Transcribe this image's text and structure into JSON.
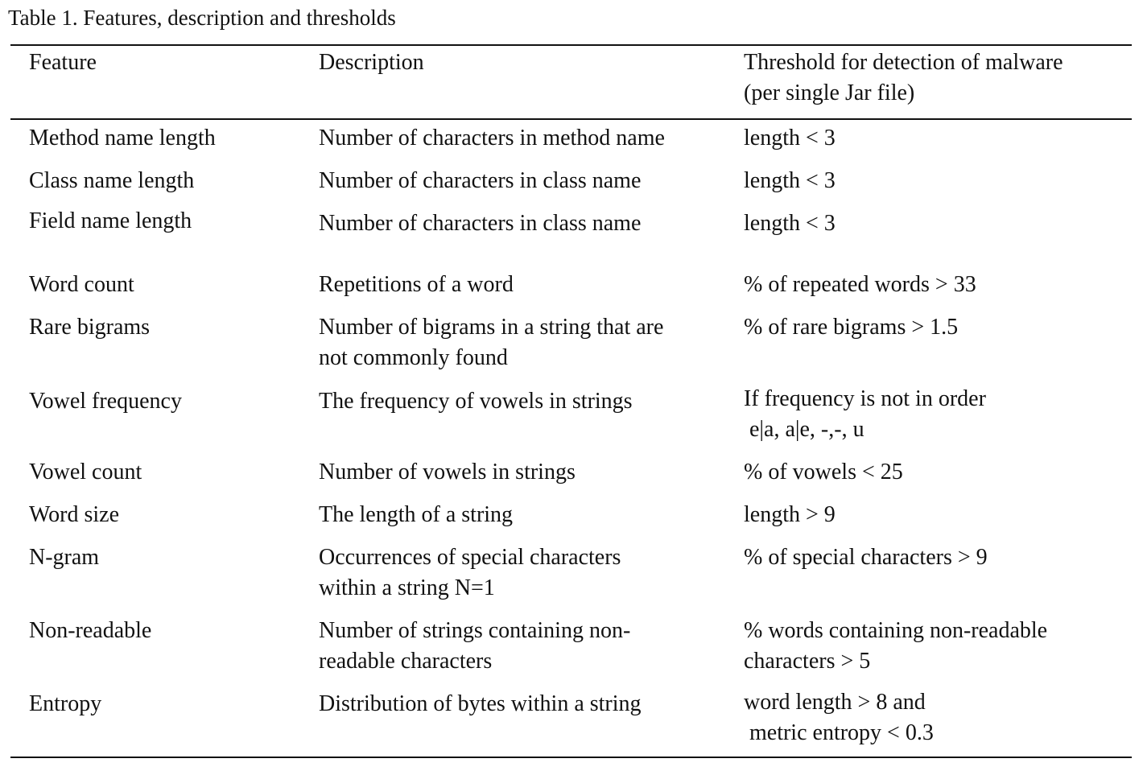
{
  "caption": "Table 1. Features, description and thresholds",
  "header": {
    "feature": "Feature",
    "description": "Description",
    "threshold_line1": "Threshold for detection of malware",
    "threshold_line2": "(per single Jar file)"
  },
  "rows": [
    {
      "feature": "Method name length",
      "description": [
        "Number of characters in method name"
      ],
      "threshold": [
        "length < 3"
      ]
    },
    {
      "feature": "Class name length",
      "description": [
        "Number of characters in class name"
      ],
      "threshold": [
        "length < 3"
      ]
    },
    {
      "feature": "Field name length",
      "description": [
        "Number of characters in class name"
      ],
      "threshold": [
        "length < 3"
      ]
    },
    {
      "feature": "Word count",
      "description": [
        "Repetitions of a word"
      ],
      "threshold": [
        "% of repeated words > 33"
      ]
    },
    {
      "feature": "Rare bigrams",
      "description": [
        "Number of bigrams in a string that are",
        "not commonly found"
      ],
      "threshold": [
        "% of rare bigrams > 1.5"
      ]
    },
    {
      "feature": "Vowel frequency",
      "description": [
        "The frequency of vowels in strings"
      ],
      "threshold": [
        "If frequency is not in order",
        "e|a, a|e, -,-, u"
      ]
    },
    {
      "feature": "Vowel count",
      "description": [
        "Number of vowels in strings"
      ],
      "threshold": [
        "% of vowels < 25"
      ]
    },
    {
      "feature": "Word size",
      "description": [
        "The length of a string"
      ],
      "threshold": [
        "length > 9"
      ]
    },
    {
      "feature": "N-gram",
      "description": [
        "Occurrences of special characters",
        "within a string N=1"
      ],
      "threshold": [
        "% of special characters > 9"
      ]
    },
    {
      "feature": "Non-readable",
      "description": [
        "Number of strings containing non-",
        "readable characters"
      ],
      "threshold": [
        "% words containing non-readable",
        "characters > 5"
      ]
    },
    {
      "feature": "Entropy",
      "description": [
        "Distribution of bytes within a string"
      ],
      "threshold": [
        "word length > 8 and",
        "metric entropy < 0.3"
      ]
    }
  ]
}
